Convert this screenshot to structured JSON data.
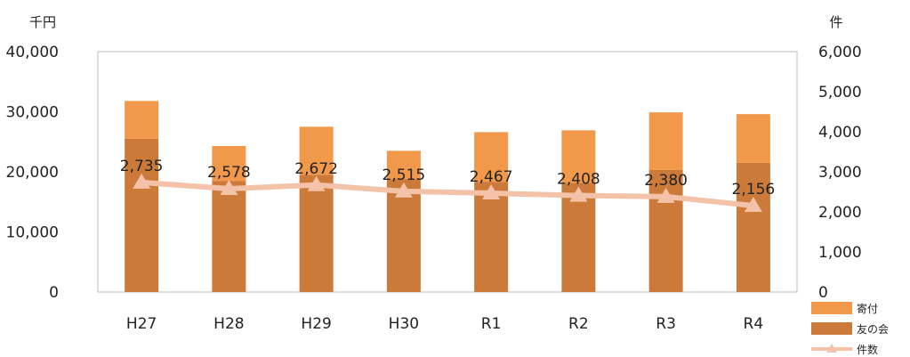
{
  "chart_data": {
    "type": "bar",
    "stacked": true,
    "categories": [
      "H27",
      "H28",
      "H29",
      "H30",
      "R1",
      "R2",
      "R3",
      "R4"
    ],
    "y_left": {
      "unit": "千円",
      "ylim": [
        0,
        40000
      ],
      "ticks": [
        "0",
        "10,000",
        "20,000",
        "30,000",
        "40,000"
      ],
      "tick_values": [
        0,
        10000,
        20000,
        30000,
        40000
      ]
    },
    "y_right": {
      "unit": "件",
      "ylim": [
        0,
        6000
      ],
      "ticks": [
        "0",
        "1,000",
        "2,000",
        "3,000",
        "4,000",
        "5,000",
        "6,000"
      ],
      "tick_values": [
        0,
        1000,
        2000,
        3000,
        4000,
        5000,
        6000
      ]
    },
    "series": [
      {
        "name": "友の会",
        "kind": "bar",
        "axis": "left",
        "color": "#cc7a3a",
        "values": [
          25500,
          18500,
          19500,
          18800,
          18300,
          18200,
          20300,
          21500
        ]
      },
      {
        "name": "寄付",
        "kind": "bar",
        "axis": "left",
        "color": "#f2984a",
        "values": [
          6300,
          5800,
          8000,
          4700,
          8300,
          8700,
          9600,
          8100
        ]
      },
      {
        "name": "件数",
        "kind": "line",
        "axis": "right",
        "color": "#f3c2a8",
        "values": [
          2735,
          2578,
          2672,
          2515,
          2467,
          2408,
          2380,
          2156
        ],
        "labels": [
          "2,735",
          "2,578",
          "2,672",
          "2,515",
          "2,467",
          "2,408",
          "2,380",
          "2,156"
        ]
      }
    ],
    "legend": {
      "position": "bottom-right",
      "order": [
        "寄付",
        "友の会",
        "件数"
      ]
    },
    "grid": false
  }
}
